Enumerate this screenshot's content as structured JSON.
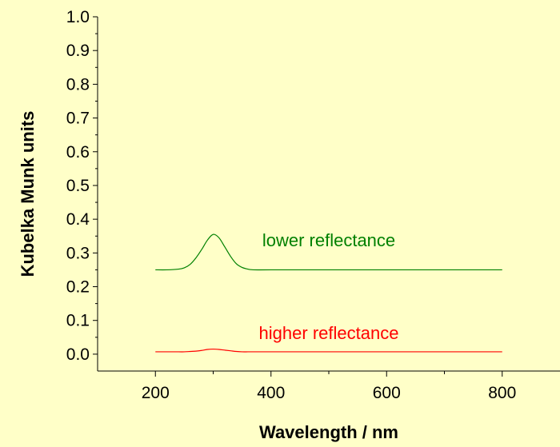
{
  "chart_data": {
    "type": "line",
    "title": "",
    "xlabel": "Wavelength / nm",
    "ylabel": "Kubelka Munk units",
    "xlim": [
      100,
      900
    ],
    "ylim": [
      -0.05,
      1.0
    ],
    "x_ticks": [
      200,
      400,
      600,
      800
    ],
    "x_tick_labels": [
      "200",
      "400",
      "600",
      "800"
    ],
    "y_ticks": [
      0.0,
      0.1,
      0.2,
      0.3,
      0.4,
      0.5,
      0.6,
      0.7,
      0.8,
      0.9,
      1.0
    ],
    "y_tick_labels": [
      "0.0",
      "0.1",
      "0.2",
      "0.3",
      "0.4",
      "0.5",
      "0.6",
      "0.7",
      "0.8",
      "0.9",
      "1.0"
    ],
    "grid": false,
    "legend": "none",
    "series": [
      {
        "name": "lower reflectance",
        "color": "#008000",
        "x": [
          200,
          220,
          240,
          250,
          260,
          270,
          280,
          290,
          300,
          310,
          320,
          330,
          340,
          350,
          360,
          370,
          400,
          500,
          600,
          700,
          800
        ],
        "y": [
          0.25,
          0.25,
          0.252,
          0.256,
          0.266,
          0.285,
          0.31,
          0.338,
          0.355,
          0.345,
          0.318,
          0.29,
          0.268,
          0.257,
          0.252,
          0.25,
          0.25,
          0.25,
          0.25,
          0.25,
          0.25
        ]
      },
      {
        "name": "higher reflectance",
        "color": "#FF0000",
        "x": [
          200,
          220,
          240,
          250,
          260,
          270,
          280,
          290,
          300,
          310,
          320,
          330,
          340,
          350,
          360,
          370,
          400,
          500,
          600,
          700,
          800
        ],
        "y": [
          0.007,
          0.007,
          0.007,
          0.007,
          0.008,
          0.009,
          0.011,
          0.014,
          0.015,
          0.014,
          0.012,
          0.01,
          0.008,
          0.007,
          0.007,
          0.007,
          0.007,
          0.007,
          0.007,
          0.007,
          0.007
        ]
      }
    ],
    "annotations": [
      {
        "text": "lower reflectance",
        "x": 500,
        "y": 0.32,
        "color": "#008000"
      },
      {
        "text": "higher reflectance",
        "x": 500,
        "y": 0.045,
        "color": "#FF0000"
      }
    ]
  }
}
